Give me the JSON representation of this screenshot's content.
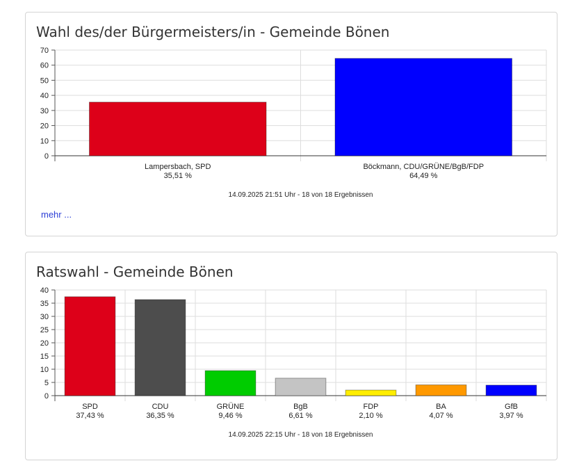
{
  "chart_data": [
    {
      "type": "bar",
      "title": "Wahl des/der Bürgermeisters/in - Gemeinde Bönen",
      "categories": [
        "Lampersbach, SPD",
        "Böckmann, CDU/GRÜNE/BgB/FDP"
      ],
      "values": [
        35.51,
        64.49
      ],
      "value_labels": [
        "35,51 %",
        "64,49 %"
      ],
      "colors": [
        "#dd0019",
        "#0000ff"
      ],
      "ylim": [
        0,
        70
      ],
      "yticks": [
        0,
        10,
        20,
        30,
        40,
        50,
        60,
        70
      ],
      "grid": true,
      "footnote": "14.09.2025 21:51 Uhr - 18 von 18 Ergebnissen",
      "more_link": "mehr ..."
    },
    {
      "type": "bar",
      "title": "Ratswahl - Gemeinde Bönen",
      "categories": [
        "SPD",
        "CDU",
        "GRÜNE",
        "BgB",
        "FDP",
        "BA",
        "GfB"
      ],
      "values": [
        37.43,
        36.35,
        9.46,
        6.61,
        2.1,
        4.07,
        3.97
      ],
      "value_labels": [
        "37,43 %",
        "36,35 %",
        "9,46 %",
        "6,61 %",
        "2,10 %",
        "4,07 %",
        "3,97 %"
      ],
      "colors": [
        "#dd0019",
        "#4d4d4d",
        "#00cc00",
        "#c4c4c4",
        "#ffee00",
        "#ff9900",
        "#0000ff"
      ],
      "ylim": [
        0,
        40
      ],
      "yticks": [
        0,
        5,
        10,
        15,
        20,
        25,
        30,
        35,
        40
      ],
      "grid": true,
      "footnote": "14.09.2025 22:15 Uhr - 18 von 18 Ergebnissen"
    }
  ]
}
